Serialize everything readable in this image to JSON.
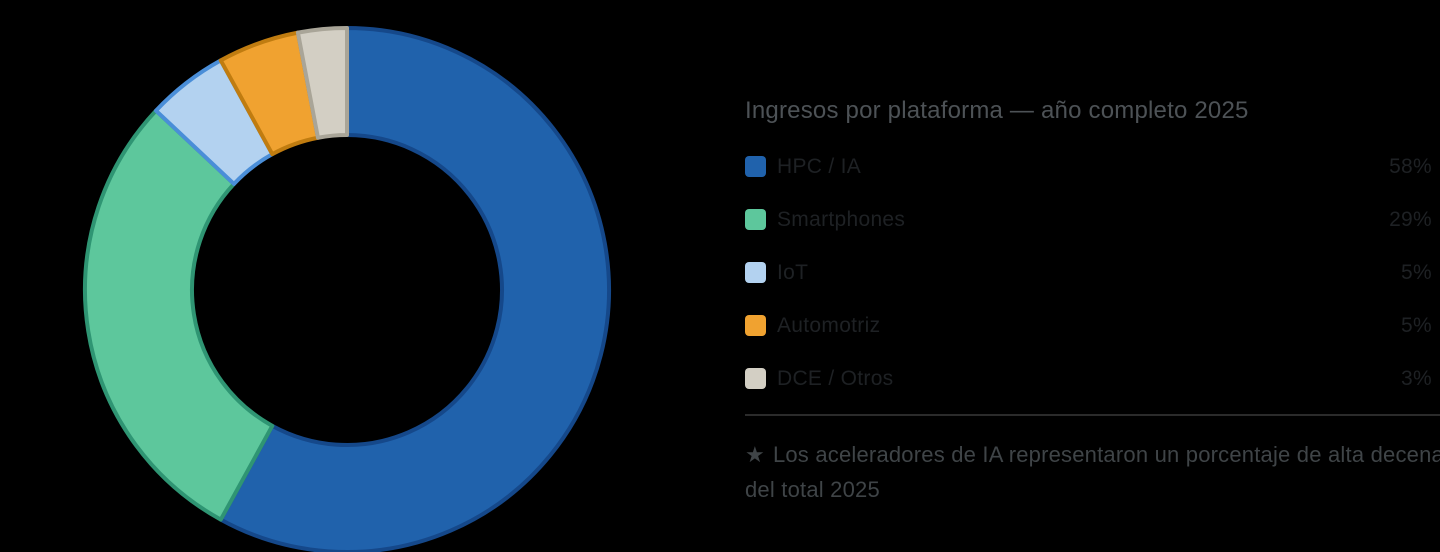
{
  "page": {
    "background": "#000000"
  },
  "chart_data": {
    "type": "pie",
    "subtype": "donut",
    "title": "Ingresos por plataforma — año completo 2025",
    "categories": [
      "HPC / IA",
      "Smartphones",
      "IoT",
      "Automotriz",
      "DCE / Otros"
    ],
    "values": [
      58,
      29,
      5,
      5,
      3
    ],
    "unit": "%",
    "start_angle_deg": 0,
    "direction": "clockwise",
    "inner_radius_ratio": 0.59,
    "legend_position": "right",
    "grid": false,
    "colors": [
      "#2062ac",
      "#5dc79c",
      "#b3d2f0",
      "#f0a230",
      "#d3cfc4"
    ],
    "edge_colors": [
      "#15488a",
      "#2f9573",
      "#4a8ed8",
      "#c07c10",
      "#a9a598"
    ]
  },
  "header": {
    "title": "Ingresos por plataforma — año completo 2025"
  },
  "legend": {
    "items": [
      {
        "label": "HPC / IA",
        "value": "58%",
        "color": "#2062ac"
      },
      {
        "label": "Smartphones",
        "value": "29%",
        "color": "#5dc79c"
      },
      {
        "label": "IoT",
        "value": "5%",
        "color": "#b3d2f0"
      },
      {
        "label": "Automotriz",
        "value": "5%",
        "color": "#f0a230"
      },
      {
        "label": "DCE / Otros",
        "value": "3%",
        "color": "#d3cfc4"
      }
    ]
  },
  "note": {
    "star_icon": "★",
    "line1": "Los aceleradores de IA representaron un porcentaje de alta decena",
    "line2": "del total 2025"
  },
  "theme": {
    "background": "#000000",
    "title_color": "#4d5256",
    "label_color": "#1e2124",
    "value_color": "#1e2124",
    "note_color": "#3f4447",
    "divider_color": "#2b2b2b"
  }
}
